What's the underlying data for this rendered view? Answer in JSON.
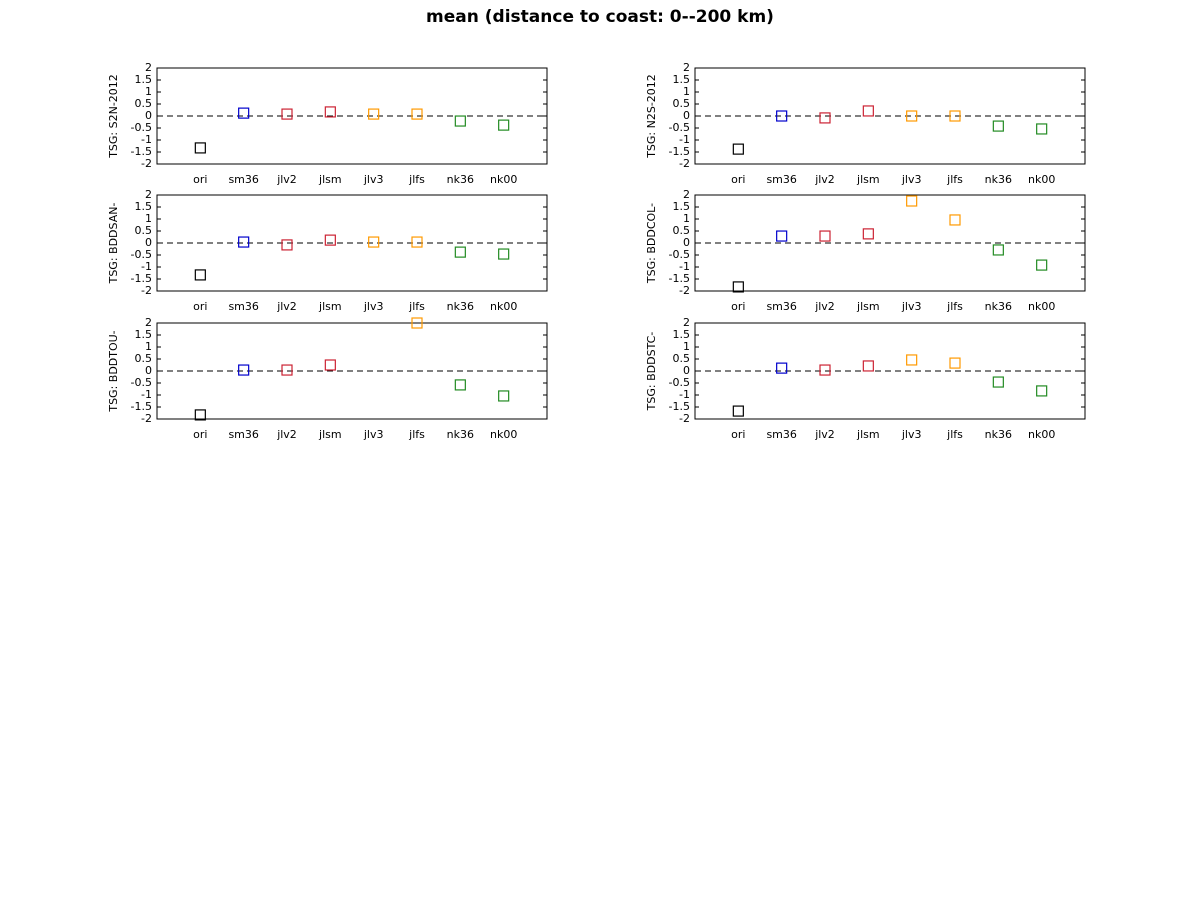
{
  "title": "mean (distance to coast: 0--200 km)",
  "chart_data": [
    {
      "type": "scatter",
      "ylabel": "TSG: S2N-2012",
      "categories": [
        "ori",
        "sm36",
        "jlv2",
        "jlsm",
        "jlv3",
        "jlfs",
        "nk36",
        "nk00"
      ],
      "values": [
        -1.33,
        0.12,
        0.08,
        0.17,
        0.08,
        0.08,
        -0.21,
        -0.38
      ],
      "colors": [
        "#000000",
        "#0000cc",
        "#cc2233",
        "#cc2233",
        "#ff9900",
        "#ff9900",
        "#228b22",
        "#228b22"
      ],
      "ylim": [
        -2,
        2
      ],
      "yticks": [
        -2,
        -1.5,
        -1,
        -0.5,
        0,
        0.5,
        1,
        1.5,
        2
      ],
      "hline": 0
    },
    {
      "type": "scatter",
      "ylabel": "TSG: N2S-2012",
      "categories": [
        "ori",
        "sm36",
        "jlv2",
        "jlsm",
        "jlv3",
        "jlfs",
        "nk36",
        "nk00"
      ],
      "values": [
        -1.38,
        0,
        -0.08,
        0.21,
        0,
        0,
        -0.42,
        -0.54
      ],
      "colors": [
        "#000000",
        "#0000cc",
        "#cc2233",
        "#cc2233",
        "#ff9900",
        "#ff9900",
        "#228b22",
        "#228b22"
      ],
      "ylim": [
        -2,
        2
      ],
      "yticks": [
        -2,
        -1.5,
        -1,
        -0.5,
        0,
        0.5,
        1,
        1.5,
        2
      ],
      "hline": 0
    },
    {
      "type": "scatter",
      "ylabel": "TSG: BDDSAN-",
      "categories": [
        "ori",
        "sm36",
        "jlv2",
        "jlsm",
        "jlv3",
        "jlfs",
        "nk36",
        "nk00"
      ],
      "values": [
        -1.33,
        0.04,
        -0.08,
        0.12,
        0.04,
        0.04,
        -0.38,
        -0.46
      ],
      "colors": [
        "#000000",
        "#0000cc",
        "#cc2233",
        "#cc2233",
        "#ff9900",
        "#ff9900",
        "#228b22",
        "#228b22"
      ],
      "ylim": [
        -2,
        2
      ],
      "yticks": [
        -2,
        -1.5,
        -1,
        -0.5,
        0,
        0.5,
        1,
        1.5,
        2
      ],
      "hline": 0
    },
    {
      "type": "scatter",
      "ylabel": "TSG: BDDCOL-",
      "categories": [
        "ori",
        "sm36",
        "jlv2",
        "jlsm",
        "jlv3",
        "jlfs",
        "nk36",
        "nk00"
      ],
      "values": [
        -1.83,
        0.29,
        0.29,
        0.38,
        1.75,
        0.96,
        -0.29,
        -0.92
      ],
      "colors": [
        "#000000",
        "#0000cc",
        "#cc2233",
        "#cc2233",
        "#ff9900",
        "#ff9900",
        "#228b22",
        "#228b22"
      ],
      "ylim": [
        -2,
        2
      ],
      "yticks": [
        -2,
        -1.5,
        -1,
        -0.5,
        0,
        0.5,
        1,
        1.5,
        2
      ],
      "hline": 0
    },
    {
      "type": "scatter",
      "ylabel": "TSG: BDDTOU-",
      "categories": [
        "ori",
        "sm36",
        "jlv2",
        "jlsm",
        "jlv3",
        "jlfs",
        "nk36",
        "nk00"
      ],
      "values": [
        -1.83,
        0.04,
        0.04,
        0.25,
        null,
        2,
        -0.58,
        -1.04
      ],
      "colors": [
        "#000000",
        "#0000cc",
        "#cc2233",
        "#cc2233",
        "#ff9900",
        "#ff9900",
        "#228b22",
        "#228b22"
      ],
      "ylim": [
        -2,
        2
      ],
      "yticks": [
        -2,
        -1.5,
        -1,
        -0.5,
        0,
        0.5,
        1,
        1.5,
        2
      ],
      "hline": 0
    },
    {
      "type": "scatter",
      "ylabel": "TSG: BDDSTC-",
      "categories": [
        "ori",
        "sm36",
        "jlv2",
        "jlsm",
        "jlv3",
        "jlfs",
        "nk36",
        "nk00"
      ],
      "values": [
        -1.67,
        0.12,
        0.04,
        0.21,
        0.46,
        0.33,
        -0.46,
        -0.83
      ],
      "colors": [
        "#000000",
        "#0000cc",
        "#cc2233",
        "#cc2233",
        "#ff9900",
        "#ff9900",
        "#228b22",
        "#228b22"
      ],
      "ylim": [
        -2,
        2
      ],
      "yticks": [
        -2,
        -1.5,
        -1,
        -0.5,
        0,
        0.5,
        1,
        1.5,
        2
      ],
      "hline": 0
    }
  ]
}
